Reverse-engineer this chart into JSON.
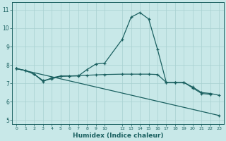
{
  "xlabel": "Humidex (Indice chaleur)",
  "bg_color": "#c8e8e8",
  "grid_color": "#a8d0d0",
  "line_color": "#1a6060",
  "xlim": [
    -0.5,
    23.5
  ],
  "ylim": [
    4.8,
    11.4
  ],
  "xticks": [
    0,
    1,
    2,
    3,
    4,
    5,
    6,
    7,
    8,
    9,
    10,
    12,
    13,
    14,
    15,
    16,
    17,
    18,
    19,
    20,
    21,
    22,
    23
  ],
  "yticks": [
    5,
    6,
    7,
    8,
    9,
    10,
    11
  ],
  "curve1_x": [
    0,
    1,
    2,
    3,
    4,
    5,
    6,
    7,
    8,
    9,
    10,
    12,
    13,
    14,
    15,
    16,
    17,
    18,
    19,
    20,
    21,
    22
  ],
  "curve1_y": [
    7.8,
    7.7,
    7.5,
    7.1,
    7.3,
    7.4,
    7.4,
    7.4,
    7.75,
    8.05,
    8.1,
    9.4,
    10.6,
    10.85,
    10.5,
    8.85,
    7.05,
    7.05,
    7.05,
    6.75,
    6.45,
    6.4
  ],
  "curve2_x": [
    0,
    1,
    2,
    3,
    4,
    5,
    6,
    7,
    8,
    9,
    10,
    12,
    13,
    14,
    15,
    16,
    17,
    18,
    19,
    20,
    21,
    22,
    23
  ],
  "curve2_y": [
    7.8,
    7.7,
    7.5,
    7.15,
    7.25,
    7.38,
    7.4,
    7.42,
    7.44,
    7.46,
    7.48,
    7.5,
    7.5,
    7.5,
    7.5,
    7.48,
    7.05,
    7.05,
    7.05,
    6.8,
    6.5,
    6.45,
    6.35
  ],
  "curve3_x": [
    0,
    23
  ],
  "curve3_y": [
    7.8,
    5.25
  ]
}
